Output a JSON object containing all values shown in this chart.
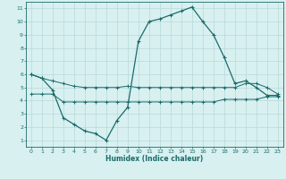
{
  "xlabel": "Humidex (Indice chaleur)",
  "x_values": [
    0,
    1,
    2,
    3,
    4,
    5,
    6,
    7,
    8,
    9,
    10,
    11,
    12,
    13,
    14,
    15,
    16,
    17,
    18,
    19,
    20,
    21,
    22,
    23
  ],
  "line1_y": [
    6.0,
    5.7,
    5.5,
    5.3,
    5.1,
    5.0,
    5.0,
    5.0,
    5.0,
    5.1,
    5.0,
    5.0,
    5.0,
    5.0,
    5.0,
    5.0,
    5.0,
    5.0,
    5.0,
    5.0,
    5.3,
    5.3,
    5.0,
    4.5
  ],
  "line2_y": [
    4.5,
    4.5,
    4.5,
    3.9,
    3.9,
    3.9,
    3.9,
    3.9,
    3.9,
    3.9,
    3.9,
    3.9,
    3.9,
    3.9,
    3.9,
    3.9,
    3.9,
    3.9,
    4.1,
    4.1,
    4.1,
    4.1,
    4.3,
    4.3
  ],
  "line3_y": [
    6.0,
    5.7,
    4.8,
    2.7,
    2.2,
    1.7,
    1.5,
    1.0,
    2.5,
    3.5,
    8.5,
    10.0,
    10.2,
    10.5,
    10.8,
    11.1,
    10.0,
    9.0,
    7.3,
    5.3,
    5.5,
    5.0,
    4.4,
    4.4
  ],
  "color": "#1a6b6b",
  "bg_color": "#d8f0f0",
  "grid_color": "#b8d8d8",
  "ylim": [
    0.5,
    11.5
  ],
  "xlim": [
    -0.5,
    23.5
  ],
  "yticks": [
    1,
    2,
    3,
    4,
    5,
    6,
    7,
    8,
    9,
    10,
    11
  ],
  "xticks": [
    0,
    1,
    2,
    3,
    4,
    5,
    6,
    7,
    8,
    9,
    10,
    11,
    12,
    13,
    14,
    15,
    16,
    17,
    18,
    19,
    20,
    21,
    22,
    23
  ]
}
